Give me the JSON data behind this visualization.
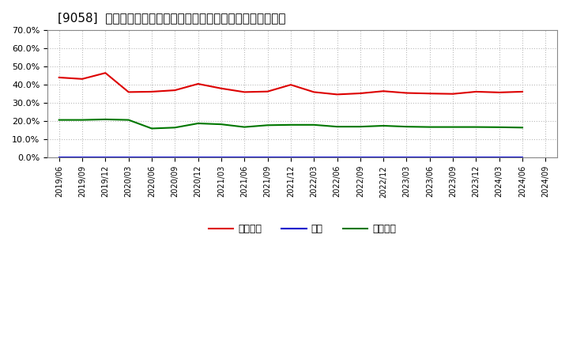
{
  "title": "[9058]  売上債権、在庫、買入債務の総資産に対する比率の推移",
  "x_labels": [
    "2019/06",
    "2019/09",
    "2019/12",
    "2020/03",
    "2020/06",
    "2020/09",
    "2020/12",
    "2021/03",
    "2021/06",
    "2021/09",
    "2021/12",
    "2022/03",
    "2022/06",
    "2022/09",
    "2022/12",
    "2023/03",
    "2023/06",
    "2023/09",
    "2023/12",
    "2024/03",
    "2024/06",
    "2024/09"
  ],
  "receivables": [
    0.44,
    0.432,
    0.465,
    0.36,
    0.362,
    0.37,
    0.405,
    0.38,
    0.36,
    0.363,
    0.4,
    0.36,
    0.347,
    0.353,
    0.365,
    0.355,
    0.352,
    0.35,
    0.362,
    0.358,
    0.362,
    null
  ],
  "inventory": [
    0.001,
    0.001,
    0.001,
    0.001,
    0.001,
    0.001,
    0.001,
    0.001,
    0.001,
    0.001,
    0.001,
    0.001,
    0.001,
    0.001,
    0.001,
    0.001,
    0.001,
    0.001,
    0.001,
    0.001,
    0.001,
    null
  ],
  "payables": [
    0.207,
    0.207,
    0.21,
    0.207,
    0.16,
    0.165,
    0.188,
    0.183,
    0.168,
    0.178,
    0.18,
    0.18,
    0.17,
    0.17,
    0.175,
    0.17,
    0.168,
    0.168,
    0.168,
    0.167,
    0.165,
    null
  ],
  "receivables_color": "#dd0000",
  "inventory_color": "#0000cc",
  "payables_color": "#007700",
  "legend_labels": [
    "売上債権",
    "在庫",
    "買入債務"
  ],
  "ylim": [
    0.0,
    0.7
  ],
  "yticks": [
    0.0,
    0.1,
    0.2,
    0.3,
    0.4,
    0.5,
    0.6,
    0.7
  ],
  "background_color": "#ffffff",
  "plot_bg_color": "#ffffff",
  "grid_color": "#aaaaaa",
  "title_fontsize": 11,
  "line_width": 1.5
}
